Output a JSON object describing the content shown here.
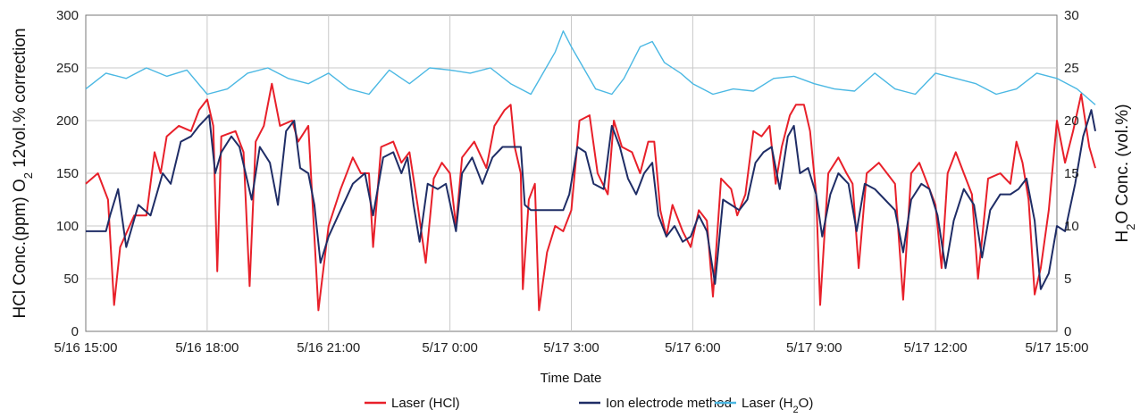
{
  "chart_data": {
    "type": "line",
    "title": "",
    "xlabel": "Time Date",
    "ylabel_left": {
      "main": "HCl Conc.(ppm) O",
      "sub": "2",
      "rest": " 12vol.% correction"
    },
    "ylabel_right": {
      "main": "H",
      "sub": "2",
      "rest": "O Conc. (vol.%)"
    },
    "x_ticks": [
      "5/16 15:00",
      "5/16 18:00",
      "5/16 21:00",
      "5/17 0:00",
      "5/17 3:00",
      "5/17 6:00",
      "5/17 9:00",
      "5/17 12:00",
      "5/17 15:00"
    ],
    "x_range_hours": [
      0,
      24
    ],
    "ylim_left": [
      0,
      300
    ],
    "ylim_right": [
      0,
      30
    ],
    "yticks_left": [
      "0",
      "50",
      "100",
      "150",
      "200",
      "250",
      "300"
    ],
    "yticks_right": [
      "0",
      "5",
      "10",
      "15",
      "20",
      "25",
      "30"
    ],
    "grid": true,
    "legend_position": "bottom",
    "series": [
      {
        "name": "Laser (HCl)",
        "name_main": "Laser (HCl)",
        "name_sub": "",
        "name_rest": "",
        "axis": "left",
        "color": "#e8202a",
        "points": [
          [
            0,
            140
          ],
          [
            0.3,
            150
          ],
          [
            0.55,
            125
          ],
          [
            0.7,
            25
          ],
          [
            0.85,
            80
          ],
          [
            1.2,
            110
          ],
          [
            1.5,
            110
          ],
          [
            1.7,
            170
          ],
          [
            1.85,
            150
          ],
          [
            2.0,
            185
          ],
          [
            2.3,
            195
          ],
          [
            2.6,
            190
          ],
          [
            2.8,
            210
          ],
          [
            3.0,
            220
          ],
          [
            3.15,
            195
          ],
          [
            3.25,
            57
          ],
          [
            3.35,
            185
          ],
          [
            3.7,
            190
          ],
          [
            3.9,
            170
          ],
          [
            4.05,
            43
          ],
          [
            4.2,
            180
          ],
          [
            4.4,
            195
          ],
          [
            4.6,
            235
          ],
          [
            4.8,
            195
          ],
          [
            5.1,
            200
          ],
          [
            5.25,
            180
          ],
          [
            5.5,
            195
          ],
          [
            5.65,
            90
          ],
          [
            5.75,
            20
          ],
          [
            6.0,
            100
          ],
          [
            6.3,
            135
          ],
          [
            6.6,
            165
          ],
          [
            6.8,
            150
          ],
          [
            7.0,
            150
          ],
          [
            7.1,
            80
          ],
          [
            7.3,
            175
          ],
          [
            7.6,
            180
          ],
          [
            7.8,
            160
          ],
          [
            8.0,
            170
          ],
          [
            8.2,
            120
          ],
          [
            8.4,
            65
          ],
          [
            8.6,
            145
          ],
          [
            8.8,
            160
          ],
          [
            9.0,
            150
          ],
          [
            9.15,
            100
          ],
          [
            9.3,
            165
          ],
          [
            9.6,
            180
          ],
          [
            9.9,
            155
          ],
          [
            10.1,
            195
          ],
          [
            10.35,
            210
          ],
          [
            10.5,
            215
          ],
          [
            10.6,
            175
          ],
          [
            10.75,
            150
          ],
          [
            10.8,
            40
          ],
          [
            10.95,
            125
          ],
          [
            11.1,
            140
          ],
          [
            11.2,
            20
          ],
          [
            11.4,
            75
          ],
          [
            11.6,
            100
          ],
          [
            11.8,
            95
          ],
          [
            12.0,
            115
          ],
          [
            12.2,
            200
          ],
          [
            12.45,
            205
          ],
          [
            12.65,
            150
          ],
          [
            12.9,
            130
          ],
          [
            13.05,
            200
          ],
          [
            13.25,
            175
          ],
          [
            13.5,
            170
          ],
          [
            13.7,
            150
          ],
          [
            13.9,
            180
          ],
          [
            14.05,
            180
          ],
          [
            14.2,
            115
          ],
          [
            14.35,
            90
          ],
          [
            14.5,
            120
          ],
          [
            14.75,
            95
          ],
          [
            14.95,
            80
          ],
          [
            15.15,
            115
          ],
          [
            15.35,
            105
          ],
          [
            15.5,
            33
          ],
          [
            15.7,
            145
          ],
          [
            15.95,
            135
          ],
          [
            16.1,
            110
          ],
          [
            16.3,
            130
          ],
          [
            16.5,
            190
          ],
          [
            16.7,
            185
          ],
          [
            16.9,
            195
          ],
          [
            17.05,
            140
          ],
          [
            17.2,
            175
          ],
          [
            17.4,
            205
          ],
          [
            17.55,
            215
          ],
          [
            17.75,
            215
          ],
          [
            17.9,
            190
          ],
          [
            18.05,
            130
          ],
          [
            18.15,
            25
          ],
          [
            18.35,
            150
          ],
          [
            18.6,
            165
          ],
          [
            18.8,
            150
          ],
          [
            18.95,
            140
          ],
          [
            19.1,
            60
          ],
          [
            19.3,
            150
          ],
          [
            19.6,
            160
          ],
          [
            19.8,
            150
          ],
          [
            20.0,
            140
          ],
          [
            20.2,
            30
          ],
          [
            20.4,
            150
          ],
          [
            20.6,
            160
          ],
          [
            20.8,
            140
          ],
          [
            21.0,
            120
          ],
          [
            21.15,
            60
          ],
          [
            21.3,
            150
          ],
          [
            21.5,
            170
          ],
          [
            21.7,
            150
          ],
          [
            21.9,
            130
          ],
          [
            22.05,
            50
          ],
          [
            22.3,
            145
          ],
          [
            22.6,
            150
          ],
          [
            22.85,
            140
          ],
          [
            23.0,
            180
          ],
          [
            23.15,
            160
          ],
          [
            23.3,
            125
          ],
          [
            23.45,
            35
          ],
          [
            23.6,
            60
          ],
          [
            23.8,
            115
          ],
          [
            24,
            200
          ],
          [
            24.2,
            160
          ],
          [
            24.4,
            190
          ],
          [
            24.6,
            225
          ],
          [
            24.8,
            175
          ],
          [
            24.95,
            155
          ]
        ]
      },
      {
        "name": "Ion electrode method",
        "name_main": "Ion electrode method",
        "name_sub": "",
        "name_rest": "",
        "axis": "left",
        "color": "#1f2d66",
        "points": [
          [
            0,
            95
          ],
          [
            0.5,
            95
          ],
          [
            0.6,
            110
          ],
          [
            0.8,
            135
          ],
          [
            1.0,
            80
          ],
          [
            1.3,
            120
          ],
          [
            1.6,
            110
          ],
          [
            1.9,
            150
          ],
          [
            2.1,
            140
          ],
          [
            2.35,
            180
          ],
          [
            2.6,
            185
          ],
          [
            2.8,
            195
          ],
          [
            3.05,
            205
          ],
          [
            3.2,
            150
          ],
          [
            3.35,
            170
          ],
          [
            3.6,
            185
          ],
          [
            3.8,
            175
          ],
          [
            3.95,
            150
          ],
          [
            4.1,
            125
          ],
          [
            4.3,
            175
          ],
          [
            4.55,
            160
          ],
          [
            4.75,
            120
          ],
          [
            4.95,
            190
          ],
          [
            5.15,
            200
          ],
          [
            5.3,
            155
          ],
          [
            5.5,
            150
          ],
          [
            5.65,
            120
          ],
          [
            5.8,
            65
          ],
          [
            6.0,
            90
          ],
          [
            6.3,
            115
          ],
          [
            6.6,
            140
          ],
          [
            6.9,
            150
          ],
          [
            7.1,
            110
          ],
          [
            7.35,
            165
          ],
          [
            7.6,
            170
          ],
          [
            7.8,
            150
          ],
          [
            7.95,
            165
          ],
          [
            8.1,
            120
          ],
          [
            8.25,
            85
          ],
          [
            8.45,
            140
          ],
          [
            8.7,
            135
          ],
          [
            8.9,
            140
          ],
          [
            9.15,
            95
          ],
          [
            9.3,
            150
          ],
          [
            9.55,
            165
          ],
          [
            9.8,
            140
          ],
          [
            10.05,
            165
          ],
          [
            10.3,
            175
          ],
          [
            10.5,
            175
          ],
          [
            10.75,
            175
          ],
          [
            10.85,
            120
          ],
          [
            11.0,
            115
          ],
          [
            11.2,
            115
          ],
          [
            11.4,
            115
          ],
          [
            11.6,
            115
          ],
          [
            11.8,
            115
          ],
          [
            11.95,
            130
          ],
          [
            12.15,
            175
          ],
          [
            12.35,
            170
          ],
          [
            12.55,
            140
          ],
          [
            12.8,
            135
          ],
          [
            13.0,
            195
          ],
          [
            13.2,
            175
          ],
          [
            13.4,
            145
          ],
          [
            13.6,
            130
          ],
          [
            13.8,
            150
          ],
          [
            14.0,
            160
          ],
          [
            14.15,
            110
          ],
          [
            14.35,
            90
          ],
          [
            14.55,
            100
          ],
          [
            14.75,
            85
          ],
          [
            14.95,
            90
          ],
          [
            15.15,
            110
          ],
          [
            15.35,
            95
          ],
          [
            15.55,
            45
          ],
          [
            15.75,
            125
          ],
          [
            15.95,
            120
          ],
          [
            16.15,
            115
          ],
          [
            16.35,
            125
          ],
          [
            16.55,
            160
          ],
          [
            16.75,
            170
          ],
          [
            16.95,
            175
          ],
          [
            17.15,
            135
          ],
          [
            17.35,
            185
          ],
          [
            17.5,
            195
          ],
          [
            17.65,
            150
          ],
          [
            17.85,
            155
          ],
          [
            18.05,
            130
          ],
          [
            18.2,
            90
          ],
          [
            18.4,
            130
          ],
          [
            18.6,
            150
          ],
          [
            18.85,
            140
          ],
          [
            19.05,
            95
          ],
          [
            19.25,
            140
          ],
          [
            19.5,
            135
          ],
          [
            19.75,
            125
          ],
          [
            20.0,
            115
          ],
          [
            20.2,
            75
          ],
          [
            20.4,
            125
          ],
          [
            20.65,
            140
          ],
          [
            20.85,
            135
          ],
          [
            21.05,
            110
          ],
          [
            21.25,
            60
          ],
          [
            21.45,
            105
          ],
          [
            21.7,
            135
          ],
          [
            21.95,
            120
          ],
          [
            22.15,
            70
          ],
          [
            22.35,
            115
          ],
          [
            22.6,
            130
          ],
          [
            22.85,
            130
          ],
          [
            23.05,
            135
          ],
          [
            23.25,
            145
          ],
          [
            23.45,
            105
          ],
          [
            23.6,
            40
          ],
          [
            23.8,
            55
          ],
          [
            24.0,
            100
          ],
          [
            24.2,
            95
          ],
          [
            24.45,
            140
          ],
          [
            24.65,
            185
          ],
          [
            24.85,
            210
          ],
          [
            24.95,
            190
          ]
        ]
      },
      {
        "name": "Laser (H2O)",
        "name_main": "Laser (H",
        "name_sub": "2",
        "name_rest": "O)",
        "axis": "right",
        "color": "#4bb8e3",
        "points": [
          [
            0,
            23
          ],
          [
            0.5,
            24.5
          ],
          [
            1.0,
            24
          ],
          [
            1.5,
            25
          ],
          [
            2.0,
            24.2
          ],
          [
            2.5,
            24.8
          ],
          [
            3.0,
            22.5
          ],
          [
            3.5,
            23
          ],
          [
            4.0,
            24.5
          ],
          [
            4.5,
            25
          ],
          [
            5.0,
            24
          ],
          [
            5.5,
            23.5
          ],
          [
            6.0,
            24.5
          ],
          [
            6.5,
            23
          ],
          [
            7.0,
            22.5
          ],
          [
            7.5,
            24.8
          ],
          [
            8.0,
            23.5
          ],
          [
            8.5,
            25
          ],
          [
            9.0,
            24.8
          ],
          [
            9.5,
            24.5
          ],
          [
            10.0,
            25
          ],
          [
            10.5,
            23.5
          ],
          [
            11.0,
            22.5
          ],
          [
            11.3,
            24.5
          ],
          [
            11.6,
            26.5
          ],
          [
            11.8,
            28.5
          ],
          [
            12.0,
            27
          ],
          [
            12.3,
            25
          ],
          [
            12.6,
            23
          ],
          [
            13.0,
            22.5
          ],
          [
            13.3,
            24
          ],
          [
            13.7,
            27
          ],
          [
            14.0,
            27.5
          ],
          [
            14.3,
            25.5
          ],
          [
            14.7,
            24.5
          ],
          [
            15.0,
            23.5
          ],
          [
            15.5,
            22.5
          ],
          [
            16.0,
            23
          ],
          [
            16.5,
            22.8
          ],
          [
            17.0,
            24
          ],
          [
            17.5,
            24.2
          ],
          [
            18.0,
            23.5
          ],
          [
            18.5,
            23
          ],
          [
            19.0,
            22.8
          ],
          [
            19.5,
            24.5
          ],
          [
            20.0,
            23
          ],
          [
            20.5,
            22.5
          ],
          [
            21.0,
            24.5
          ],
          [
            21.5,
            24
          ],
          [
            22.0,
            23.5
          ],
          [
            22.5,
            22.5
          ],
          [
            23.0,
            23
          ],
          [
            23.5,
            24.5
          ],
          [
            24.0,
            24
          ],
          [
            24.5,
            23
          ],
          [
            24.95,
            21.5
          ]
        ]
      }
    ]
  }
}
